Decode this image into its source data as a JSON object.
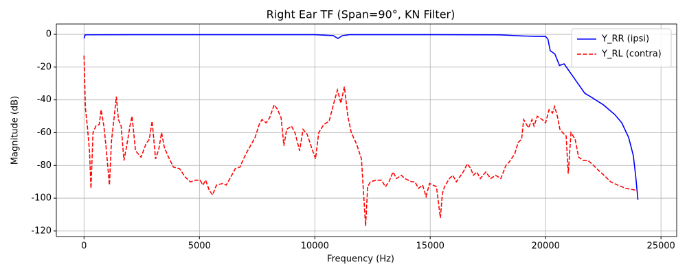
{
  "chart_data": {
    "type": "line",
    "title": "Right Ear TF (Span=90°, KN Filter)",
    "x_label": "Frequency (Hz)",
    "y_label": "Magnitude (dB)",
    "xlim": [
      -1200,
      25680
    ],
    "ylim": [
      -123.4,
      6.3
    ],
    "xticks": [
      0,
      5000,
      10000,
      15000,
      20000,
      25000
    ],
    "yticks": [
      0,
      -20,
      -40,
      -60,
      -80,
      -100,
      -120
    ],
    "grid": true,
    "legend": "upper right",
    "series": [
      {
        "name": "Y_RR (ipsi)",
        "color": "#0000ff",
        "dash": "solid",
        "x": [
          0,
          50,
          2000,
          6000,
          10000,
          10800,
          11000,
          11200,
          11500,
          15000,
          18000,
          19000,
          19500,
          20000,
          20100,
          20200,
          20400,
          20600,
          20800,
          21000,
          21200,
          21500,
          21700,
          22000,
          22500,
          23000,
          23300,
          23600,
          23800,
          23900,
          24000
        ],
        "values": [
          -2.5,
          -0.3,
          -0.2,
          -0.2,
          -0.2,
          -0.8,
          -2.5,
          -0.8,
          -0.2,
          -0.2,
          -0.3,
          -1,
          -1.2,
          -1.3,
          -3,
          -10,
          -12,
          -19,
          -18,
          -22,
          -26,
          -32,
          -36,
          -38.5,
          -43,
          -49,
          -54,
          -63,
          -74,
          -86,
          -101
        ]
      },
      {
        "name": "Y_RL (contra)",
        "color": "#ff0000",
        "dash": "dashed",
        "x": [
          0,
          60,
          150,
          240,
          300,
          390,
          510,
          660,
          740,
          860,
          950,
          1100,
          1190,
          1310,
          1400,
          1490,
          1610,
          1730,
          1850,
          1990,
          2080,
          2230,
          2470,
          2680,
          2830,
          2950,
          3100,
          3240,
          3360,
          3480,
          3630,
          3870,
          4140,
          4380,
          4610,
          4850,
          5030,
          5150,
          5270,
          5420,
          5570,
          5740,
          6010,
          6160,
          6400,
          6550,
          6760,
          6910,
          7050,
          7290,
          7410,
          7590,
          7710,
          7890,
          8040,
          8240,
          8390,
          8540,
          8660,
          8780,
          8990,
          9140,
          9340,
          9490,
          9670,
          9880,
          10030,
          10170,
          10390,
          10620,
          10860,
          10980,
          11130,
          11280,
          11430,
          11580,
          11810,
          12020,
          12200,
          12290,
          12410,
          12650,
          12890,
          13060,
          13210,
          13390,
          13540,
          13750,
          13900,
          14050,
          14200,
          14340,
          14490,
          14670,
          14820,
          14970,
          15120,
          15270,
          15440,
          15530,
          15620,
          15830,
          15980,
          16130,
          16280,
          16430,
          16610,
          16760,
          16870,
          17020,
          17170,
          17410,
          17620,
          17830,
          18060,
          18280,
          18420,
          18660,
          18810,
          18960,
          19050,
          19170,
          19260,
          19410,
          19500,
          19640,
          19850,
          20000,
          20150,
          20300,
          20390,
          20510,
          20620,
          20740,
          20890,
          20980,
          21100,
          21280,
          21430,
          21640,
          21840,
          22080,
          22290,
          22530,
          22820,
          23120,
          23480,
          23870,
          24000
        ],
        "values": [
          -13,
          -45,
          -57,
          -72,
          -94,
          -60,
          -56,
          -55,
          -46,
          -56,
          -68,
          -92,
          -65,
          -50,
          -38,
          -52,
          -56,
          -77,
          -68,
          -56,
          -50,
          -71,
          -75,
          -67,
          -64,
          -53,
          -76,
          -70,
          -60,
          -69,
          -74,
          -81,
          -82,
          -87,
          -90,
          -89,
          -89,
          -92,
          -89,
          -95,
          -98,
          -92,
          -91,
          -92,
          -86,
          -82,
          -81,
          -76,
          -72,
          -66,
          -63,
          -55,
          -52,
          -54,
          -51,
          -43,
          -46,
          -51,
          -68,
          -58,
          -56,
          -60,
          -71,
          -58,
          -61,
          -70,
          -76,
          -60,
          -55,
          -53,
          -40,
          -34,
          -42,
          -32,
          -50,
          -60,
          -67,
          -76,
          -117,
          -93,
          -90,
          -89,
          -89,
          -93,
          -90,
          -84,
          -88,
          -86,
          -88,
          -89,
          -90,
          -90,
          -94,
          -92,
          -99,
          -91,
          -92,
          -93,
          -112,
          -97,
          -93,
          -88,
          -86,
          -90,
          -87,
          -84,
          -79,
          -82,
          -86,
          -84,
          -88,
          -84,
          -88,
          -86,
          -88,
          -80,
          -78,
          -73,
          -66,
          -64,
          -52,
          -55,
          -57,
          -52,
          -56,
          -50,
          -52,
          -54,
          -46,
          -48,
          -44,
          -50,
          -58,
          -60,
          -62,
          -85,
          -60,
          -64,
          -75,
          -77,
          -77,
          -80,
          -83,
          -86,
          -90,
          -92,
          -94,
          -95,
          -96
        ]
      }
    ]
  }
}
